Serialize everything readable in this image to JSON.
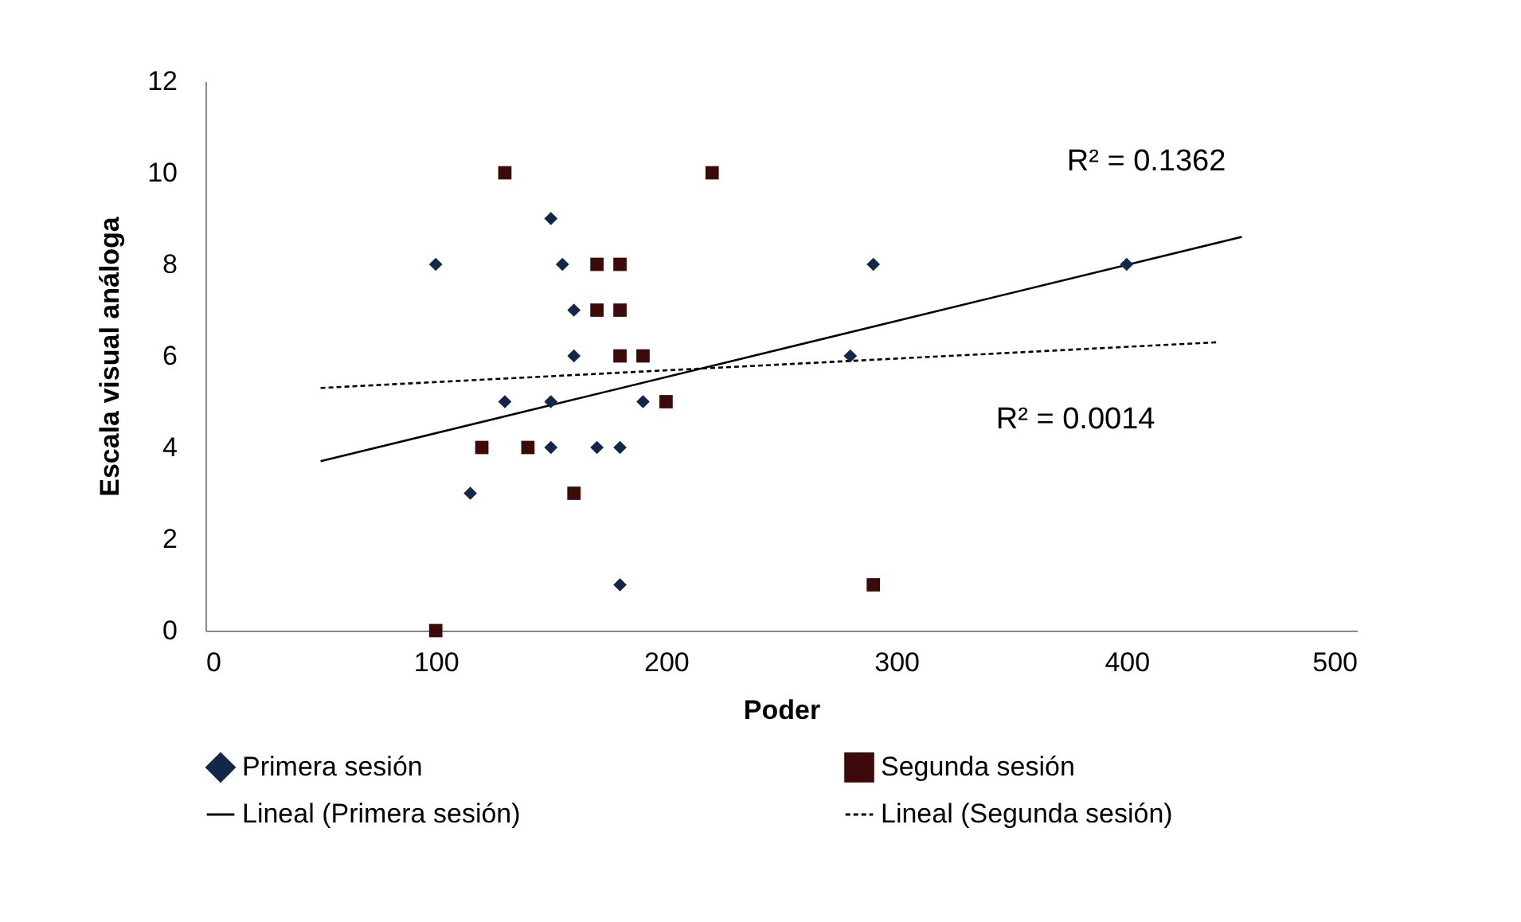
{
  "chart_data": {
    "type": "scatter",
    "xlabel": "Poder",
    "ylabel": "Escala visual análoga",
    "xlim": [
      0,
      500
    ],
    "xticks": [
      0,
      100,
      200,
      300,
      400,
      500
    ],
    "ylim": [
      0,
      12
    ],
    "yticks": [
      0,
      2,
      4,
      6,
      8,
      10,
      12
    ],
    "legend": "bottom",
    "series": [
      {
        "name": "Primera sesión",
        "marker": "diamond",
        "color": "#12284a",
        "x": [
          100,
          150,
          155,
          160,
          160,
          130,
          150,
          150,
          170,
          180,
          115,
          180,
          190,
          290,
          280,
          400
        ],
        "values": [
          8,
          9,
          8,
          7,
          6,
          5,
          5,
          4,
          4,
          4,
          3,
          1,
          5,
          8,
          6,
          8
        ]
      },
      {
        "name": "Segunda sesión",
        "marker": "square",
        "color": "#3d0a0a",
        "x": [
          130,
          220,
          170,
          180,
          170,
          180,
          180,
          190,
          200,
          120,
          140,
          160,
          100,
          290
        ],
        "values": [
          10,
          10,
          8,
          8,
          7,
          7,
          6,
          6,
          5,
          4,
          4,
          3,
          0,
          1
        ]
      },
      {
        "name": "Lineal (Primera sesión)",
        "type": "line",
        "line_style": "solid",
        "color": "#000000",
        "x": [
          50,
          450
        ],
        "values": [
          3.7,
          8.6
        ]
      },
      {
        "name": "Lineal (Segunda sesión)",
        "type": "line",
        "line_style": "dashed",
        "color": "#000000",
        "x": [
          50,
          440
        ],
        "values": [
          5.3,
          6.3
        ]
      }
    ],
    "annotations": [
      "R² = 0.1362",
      "R² = 0.0014"
    ]
  }
}
